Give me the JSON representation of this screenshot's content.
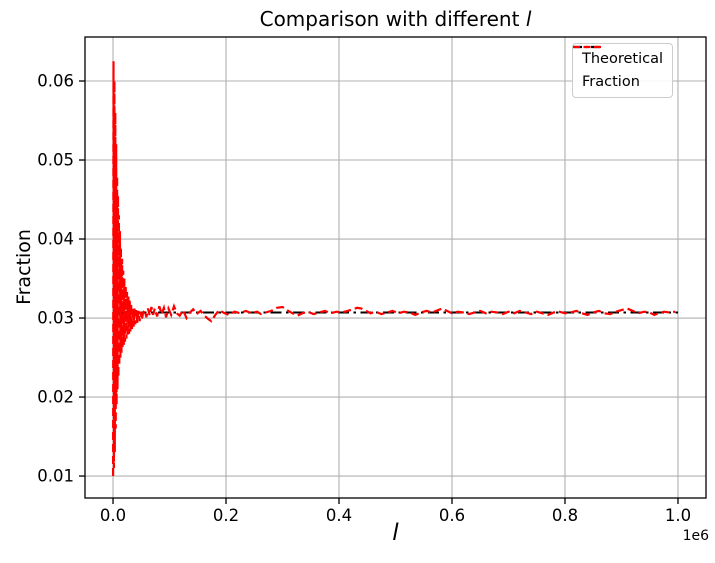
{
  "figure": {
    "title_prefix": "Comparison with different ",
    "title_math": "l",
    "xlabel": "l",
    "ylabel": "Fraction",
    "offset_label": "1e6"
  },
  "colors": {
    "theoretical": "#000000",
    "fraction": "#ff0000",
    "grid": "#b0b0b0",
    "spine": "#000000",
    "legend_border": "#cccccc"
  },
  "chart_data": {
    "type": "line",
    "title": "Comparison with different l",
    "xlabel": "l",
    "ylabel": "Fraction",
    "x_offset_factor": "1e6",
    "xlim": [
      -49600,
      1049600
    ],
    "ylim": [
      0.00722,
      0.06557
    ],
    "grid": true,
    "legend_position": "upper right",
    "x_ticks": {
      "values": [
        0,
        200000,
        400000,
        600000,
        800000,
        1000000
      ],
      "labels": [
        "0.0",
        "0.2",
        "0.4",
        "0.6",
        "0.8",
        "1.0"
      ]
    },
    "y_ticks": {
      "values": [
        0.01,
        0.02,
        0.03,
        0.04,
        0.05,
        0.06
      ],
      "labels": [
        "0.01",
        "0.02",
        "0.03",
        "0.04",
        "0.05",
        "0.06"
      ]
    },
    "series": [
      {
        "name": "Theoretical",
        "color": "#000000",
        "linestyle": "dashdot",
        "points": [
          [
            0,
            0.0307
          ],
          [
            1000000,
            0.0307
          ]
        ]
      },
      {
        "name": "Fraction",
        "color": "#ff0000",
        "linestyle": "dashed",
        "points": [
          [
            200,
            0.01
          ],
          [
            800,
            0.0625
          ],
          [
            1600,
            0.011
          ],
          [
            2400,
            0.06
          ],
          [
            3200,
            0.013
          ],
          [
            4000,
            0.056
          ],
          [
            4800,
            0.016
          ],
          [
            5600,
            0.052
          ],
          [
            6400,
            0.019
          ],
          [
            7200,
            0.048
          ],
          [
            8000,
            0.021
          ],
          [
            8800,
            0.0455
          ],
          [
            9600,
            0.0225
          ],
          [
            10400,
            0.043
          ],
          [
            11200,
            0.024
          ],
          [
            12100,
            0.041
          ],
          [
            13000,
            0.025
          ],
          [
            14000,
            0.039
          ],
          [
            15000,
            0.0256
          ],
          [
            16000,
            0.0375
          ],
          [
            17000,
            0.0262
          ],
          [
            18000,
            0.036
          ],
          [
            19000,
            0.0266
          ],
          [
            20000,
            0.035
          ],
          [
            21200,
            0.027
          ],
          [
            22400,
            0.034
          ],
          [
            23600,
            0.0274
          ],
          [
            24800,
            0.0333
          ],
          [
            26000,
            0.0277
          ],
          [
            27200,
            0.0327
          ],
          [
            28400,
            0.028
          ],
          [
            29600,
            0.0322
          ],
          [
            30800,
            0.0283
          ],
          [
            32000,
            0.0318
          ],
          [
            33500,
            0.0286
          ],
          [
            35000,
            0.0314
          ],
          [
            36500,
            0.0289
          ],
          [
            38000,
            0.0312
          ],
          [
            39500,
            0.0292
          ],
          [
            41000,
            0.031
          ],
          [
            43000,
            0.0294
          ],
          [
            45000,
            0.0309
          ],
          [
            47000,
            0.0296
          ],
          [
            49000,
            0.0308
          ],
          [
            51000,
            0.0298
          ],
          [
            53000,
            0.0306
          ],
          [
            56000,
            0.031
          ],
          [
            59000,
            0.0301
          ],
          [
            62000,
            0.0312
          ],
          [
            65000,
            0.0303
          ],
          [
            68000,
            0.0314
          ],
          [
            71000,
            0.0304
          ],
          [
            74000,
            0.0312
          ],
          [
            78000,
            0.0302
          ],
          [
            82000,
            0.0315
          ],
          [
            86000,
            0.0305
          ],
          [
            90000,
            0.0313
          ],
          [
            94000,
            0.0301
          ],
          [
            98000,
            0.0312
          ],
          [
            103000,
            0.0304
          ],
          [
            108000,
            0.0315
          ],
          [
            113000,
            0.0306
          ],
          [
            118000,
            0.0303
          ],
          [
            124000,
            0.031
          ],
          [
            130000,
            0.03
          ],
          [
            136000,
            0.0307
          ],
          [
            142000,
            0.0311
          ],
          [
            148000,
            0.0305
          ],
          [
            155000,
            0.0309
          ],
          [
            162000,
            0.0303
          ],
          [
            168000,
            0.0299
          ],
          [
            174000,
            0.0296
          ],
          [
            181000,
            0.0304
          ],
          [
            188000,
            0.031
          ],
          [
            195000,
            0.0307
          ],
          [
            205000,
            0.0304
          ],
          [
            215000,
            0.0308
          ],
          [
            225000,
            0.0306
          ],
          [
            235000,
            0.0309
          ],
          [
            245000,
            0.0306
          ],
          [
            255000,
            0.0308
          ],
          [
            262000,
            0.0305
          ],
          [
            270000,
            0.0307
          ],
          [
            280000,
            0.0309
          ],
          [
            290000,
            0.0313
          ],
          [
            300000,
            0.0314
          ],
          [
            310000,
            0.0309
          ],
          [
            318000,
            0.0306
          ],
          [
            326000,
            0.0303
          ],
          [
            335000,
            0.0306
          ],
          [
            345000,
            0.0308
          ],
          [
            355000,
            0.0305
          ],
          [
            365000,
            0.0307
          ],
          [
            375000,
            0.0309
          ],
          [
            385000,
            0.0306
          ],
          [
            395000,
            0.0308
          ],
          [
            405000,
            0.0307
          ],
          [
            415000,
            0.0309
          ],
          [
            425000,
            0.0311
          ],
          [
            432000,
            0.0313
          ],
          [
            440000,
            0.0312
          ],
          [
            448000,
            0.0309
          ],
          [
            456000,
            0.0306
          ],
          [
            465000,
            0.0308
          ],
          [
            475000,
            0.0305
          ],
          [
            485000,
            0.0307
          ],
          [
            495000,
            0.0309
          ],
          [
            505000,
            0.0306
          ],
          [
            515000,
            0.0308
          ],
          [
            525000,
            0.0307
          ],
          [
            535000,
            0.0304
          ],
          [
            545000,
            0.0307
          ],
          [
            555000,
            0.0309
          ],
          [
            565000,
            0.0307
          ],
          [
            575000,
            0.031
          ],
          [
            583000,
            0.0312
          ],
          [
            591000,
            0.0309
          ],
          [
            600000,
            0.0306
          ],
          [
            610000,
            0.0308
          ],
          [
            620000,
            0.0307
          ],
          [
            630000,
            0.0305
          ],
          [
            640000,
            0.0307
          ],
          [
            650000,
            0.0309
          ],
          [
            660000,
            0.0306
          ],
          [
            670000,
            0.0308
          ],
          [
            680000,
            0.0307
          ],
          [
            690000,
            0.0305
          ],
          [
            700000,
            0.0308
          ],
          [
            710000,
            0.0306
          ],
          [
            720000,
            0.0309
          ],
          [
            730000,
            0.0307
          ],
          [
            740000,
            0.0305
          ],
          [
            750000,
            0.0308
          ],
          [
            760000,
            0.0306
          ],
          [
            770000,
            0.0304
          ],
          [
            780000,
            0.0307
          ],
          [
            790000,
            0.0308
          ],
          [
            800000,
            0.0306
          ],
          [
            810000,
            0.0307
          ],
          [
            820000,
            0.0309
          ],
          [
            830000,
            0.0306
          ],
          [
            840000,
            0.0304
          ],
          [
            850000,
            0.0307
          ],
          [
            860000,
            0.0309
          ],
          [
            870000,
            0.0306
          ],
          [
            880000,
            0.0305
          ],
          [
            890000,
            0.0308
          ],
          [
            900000,
            0.031
          ],
          [
            910000,
            0.0312
          ],
          [
            920000,
            0.0309
          ],
          [
            930000,
            0.0306
          ],
          [
            940000,
            0.0308
          ],
          [
            950000,
            0.0307
          ],
          [
            958000,
            0.0304
          ],
          [
            966000,
            0.0306
          ],
          [
            975000,
            0.0308
          ],
          [
            985000,
            0.0307
          ],
          [
            995000,
            0.0308
          ]
        ]
      }
    ]
  }
}
